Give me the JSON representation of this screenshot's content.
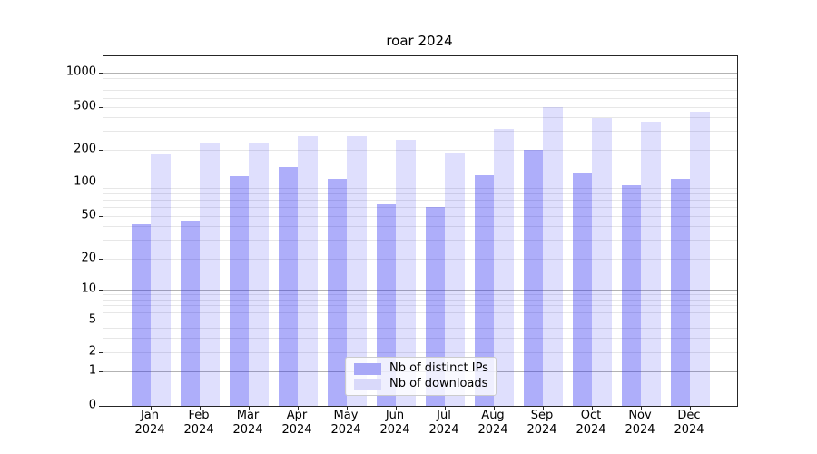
{
  "chart_data": {
    "type": "bar",
    "title": "roar 2024",
    "categories": [
      "Jan 2024",
      "Feb 2024",
      "Mar 2024",
      "Apr 2024",
      "May 2024",
      "Jun 2024",
      "Jul 2024",
      "Aug 2024",
      "Sep 2024",
      "Oct 2024",
      "Nov 2024",
      "Dec 2024"
    ],
    "series": [
      {
        "name": "Nb of distinct IPs",
        "color": "rgba(30,30,240,0.36)",
        "legend_color": "#a8a8f7",
        "values": [
          42,
          45,
          114,
          138,
          107,
          64,
          60,
          116,
          199,
          122,
          95,
          108
        ]
      },
      {
        "name": "Nb of downloads",
        "color": "rgba(30,30,240,0.14)",
        "legend_color": "#d9d9fa",
        "values": [
          180,
          232,
          232,
          268,
          268,
          245,
          186,
          310,
          500,
          395,
          360,
          452
        ]
      }
    ],
    "yscale": "symlog",
    "yticks": [
      0,
      1,
      2,
      5,
      10,
      20,
      50,
      100,
      200,
      500,
      1000
    ],
    "ylim": [
      0,
      1400
    ],
    "xlabel": "",
    "ylabel": "",
    "grid": true,
    "legend_position": "lower center"
  },
  "colors": {
    "major_grid": "#b3b3b3",
    "minor_grid": "#e7e7e7",
    "spine": "#262626",
    "text": "#000000",
    "legend_border": "#cccccc"
  }
}
